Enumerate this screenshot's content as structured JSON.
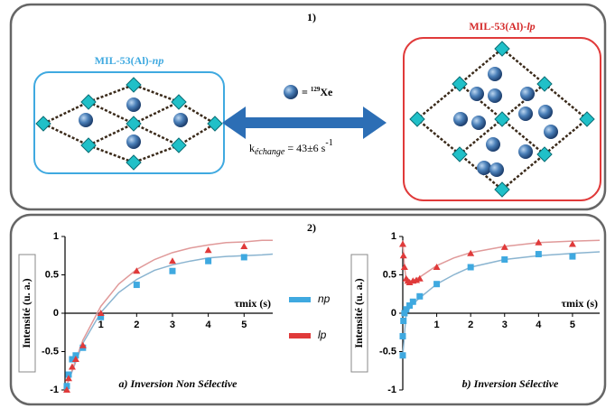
{
  "panel1": {
    "label": "1)",
    "left_title": {
      "base": "MIL-53(Al)-",
      "suffix": "np"
    },
    "right_title": {
      "base": "MIL-53(Al)-",
      "suffix": "lp"
    },
    "xenon": {
      "prefix": "=",
      "mass": "129",
      "element": "Xe"
    },
    "rate": {
      "symbol": "k",
      "subscript": "échange",
      "value": "= 43±6 s",
      "exponent": "-1"
    }
  },
  "panel2": {
    "label": "2)"
  },
  "chart_data": [
    {
      "type": "scatter",
      "subtitle": "a) Inversion Non Sélective",
      "y_label": "Intensité (u. a.)",
      "x_label": "τmix (s)",
      "xlim": [
        0,
        5.8
      ],
      "ylim": [
        -1,
        1
      ],
      "xticks": [
        1,
        2,
        3,
        4,
        5
      ],
      "yticks": [
        -1,
        -0.5,
        0,
        0.5,
        1
      ],
      "series": [
        {
          "name": "np",
          "color": "#3fa9e0",
          "marker": "square",
          "x": [
            0.05,
            0.1,
            0.2,
            0.3,
            0.5,
            1,
            2,
            3,
            4,
            5
          ],
          "values": [
            -0.95,
            -0.8,
            -0.6,
            -0.55,
            -0.45,
            -0.05,
            0.37,
            0.55,
            0.68,
            0.73
          ]
        },
        {
          "name": "lp",
          "color": "#e03a3a",
          "marker": "triangle",
          "x": [
            0.05,
            0.1,
            0.2,
            0.3,
            0.5,
            1,
            2,
            3,
            4,
            5
          ],
          "values": [
            -1,
            -0.85,
            -0.7,
            -0.6,
            -0.42,
            0,
            0.55,
            0.68,
            0.82,
            0.87
          ]
        }
      ],
      "fits": [
        {
          "color": "#8ab4d0",
          "x": [
            0,
            0.5,
            1,
            1.5,
            2,
            2.5,
            3,
            3.5,
            4,
            4.5,
            5,
            5.5,
            5.8
          ],
          "values": [
            -1,
            -0.39,
            0.01,
            0.27,
            0.44,
            0.56,
            0.63,
            0.68,
            0.72,
            0.74,
            0.75,
            0.76,
            0.77
          ]
        },
        {
          "color": "#e09a9a",
          "x": [
            0,
            0.5,
            1,
            1.5,
            2,
            2.5,
            3,
            3.5,
            4,
            4.5,
            5,
            5.5,
            5.8
          ],
          "values": [
            -1,
            -0.35,
            0.09,
            0.38,
            0.57,
            0.7,
            0.79,
            0.85,
            0.89,
            0.92,
            0.93,
            0.95,
            0.95
          ]
        }
      ]
    },
    {
      "type": "scatter",
      "subtitle": "b) Inversion Sélective",
      "y_label": "Intensité (u. a.)",
      "x_label": "τmix (s)",
      "xlim": [
        0,
        5.8
      ],
      "ylim": [
        -1,
        1
      ],
      "xticks": [
        1,
        2,
        3,
        4,
        5
      ],
      "yticks": [
        -1,
        -0.5,
        0,
        0.5,
        1
      ],
      "series": [
        {
          "color": "#3fa9e0",
          "marker": "square",
          "x": [
            0,
            0,
            0.02,
            0.05,
            0.1,
            0.2,
            0.3,
            0.5,
            1,
            2,
            3,
            4,
            5
          ],
          "values": [
            -0.55,
            -0.3,
            -0.1,
            0,
            0.05,
            0.1,
            0.15,
            0.22,
            0.38,
            0.6,
            0.7,
            0.77,
            0.74
          ]
        },
        {
          "color": "#e03a3a",
          "marker": "triangle",
          "x": [
            0,
            0.02,
            0.05,
            0.1,
            0.15,
            0.2,
            0.3,
            0.4,
            0.5,
            1,
            2,
            3,
            4,
            5
          ],
          "values": [
            0.9,
            0.75,
            0.6,
            0.45,
            0.42,
            0.4,
            0.42,
            0.43,
            0.45,
            0.6,
            0.78,
            0.86,
            0.92,
            0.9
          ]
        }
      ],
      "fits": [
        {
          "color": "#8ab4d0",
          "x": [
            0,
            0.1,
            0.3,
            0.5,
            1,
            1.5,
            2,
            3,
            4,
            5,
            5.8
          ],
          "values": [
            -0.55,
            0,
            0.12,
            0.2,
            0.38,
            0.5,
            0.6,
            0.7,
            0.75,
            0.78,
            0.8
          ]
        },
        {
          "color": "#e09a9a",
          "x": [
            0,
            0.05,
            0.1,
            0.2,
            0.3,
            0.5,
            1,
            1.5,
            2,
            3,
            4,
            5,
            5.8
          ],
          "values": [
            0.95,
            0.6,
            0.45,
            0.42,
            0.43,
            0.47,
            0.62,
            0.72,
            0.79,
            0.87,
            0.92,
            0.94,
            0.95
          ]
        }
      ]
    }
  ]
}
